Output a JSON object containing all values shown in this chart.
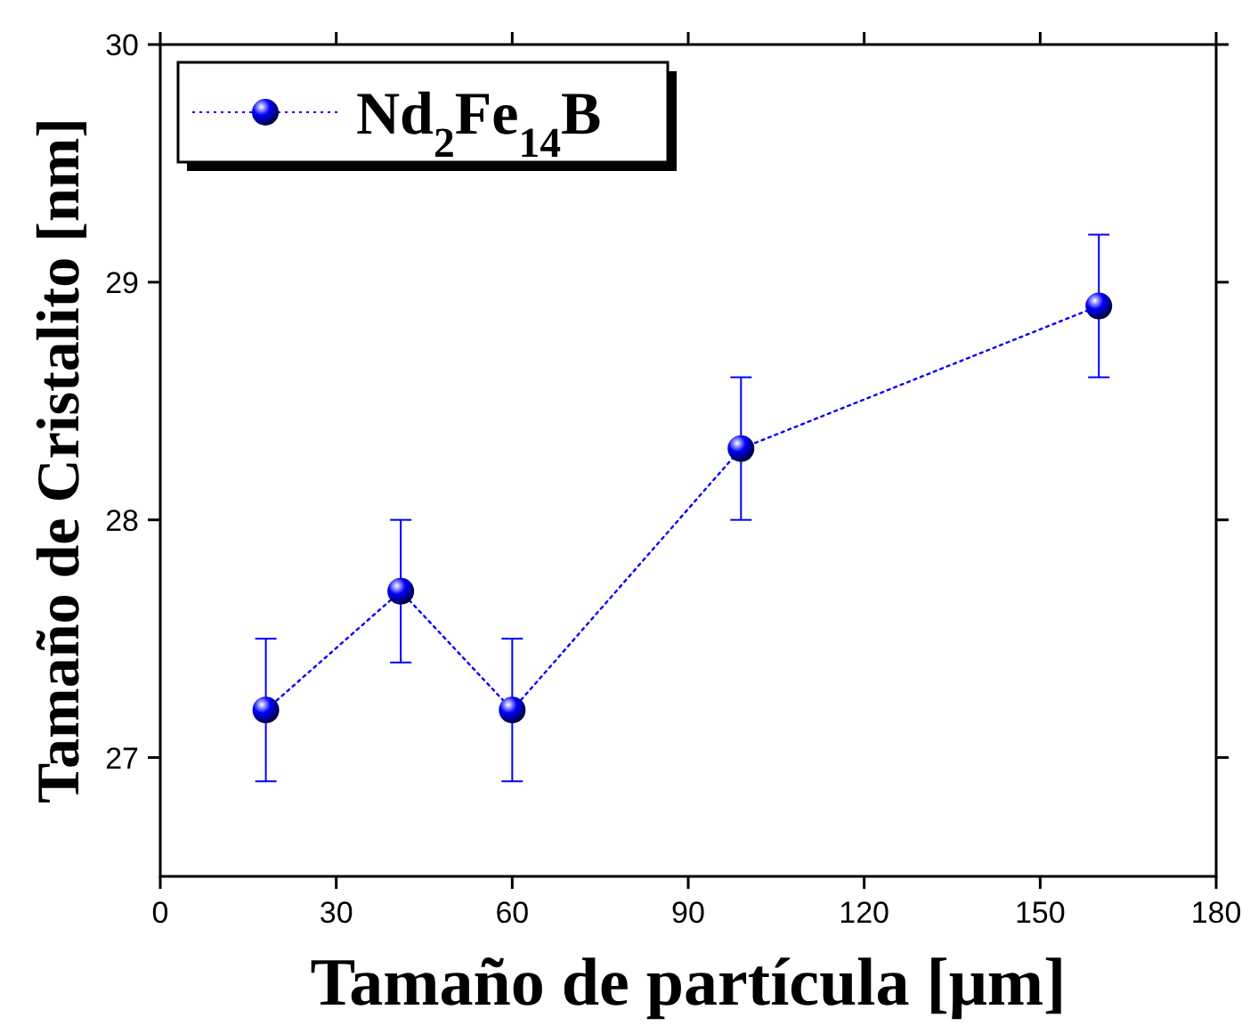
{
  "chart_data": {
    "type": "line",
    "xlabel": "Tamaño de partícula [μm]",
    "ylabel": "Tamaño de Cristalito [nm]",
    "x": [
      18,
      41,
      60,
      99,
      160
    ],
    "series": [
      {
        "name": "Nd$_{2}$Fe$_{14}$B",
        "color": "#0000ff",
        "values": [
          27.2,
          27.7,
          27.2,
          28.3,
          28.9
        ],
        "errors": [
          0.3,
          0.3,
          0.3,
          0.3,
          0.3
        ]
      }
    ],
    "marker": "circle",
    "line_style": "dotted",
    "legend": "top left",
    "xlim": [
      0,
      180
    ],
    "xticks": [
      0,
      30,
      60,
      90,
      120,
      150,
      180
    ],
    "ylim": [
      26.5,
      30
    ],
    "yticks": [
      27,
      28,
      29,
      30
    ]
  }
}
